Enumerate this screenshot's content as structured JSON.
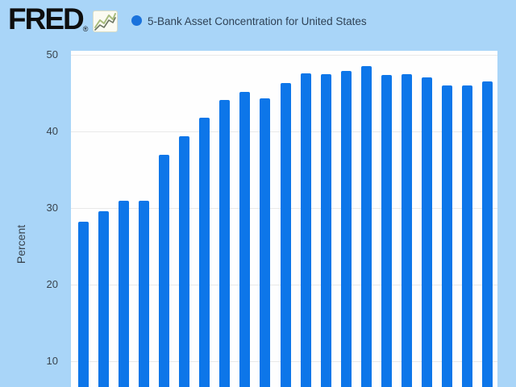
{
  "page": {
    "background_color": "#a9d5f8"
  },
  "header": {
    "logo_text": "FRED",
    "logo_registered": "®",
    "sparkline_icon": "line-chart-sparkline",
    "series_marker_color": "#1a72dc",
    "series_title": "5-Bank Asset Concentration for United States"
  },
  "chart_data": {
    "type": "bar",
    "title": "5-Bank Asset Concentration for United States",
    "xlabel": "",
    "ylabel": "Percent",
    "yticks": [
      "50",
      "40",
      "30",
      "20",
      "10"
    ],
    "ylim_top": 50,
    "grid": true,
    "legend_position": "top",
    "bar_color": "#0d76e9",
    "background_plot": "#fefefe",
    "values": [
      28.2,
      29.6,
      30.9,
      31.0,
      37.0,
      39.4,
      41.8,
      44.1,
      45.2,
      44.3,
      46.3,
      47.6,
      47.5,
      47.9,
      48.5,
      47.4,
      47.5,
      47.1,
      46.0,
      46.0,
      46.5
    ],
    "note": "x-axis labels cropped below the visible area; bars continue past the bottom edge"
  }
}
